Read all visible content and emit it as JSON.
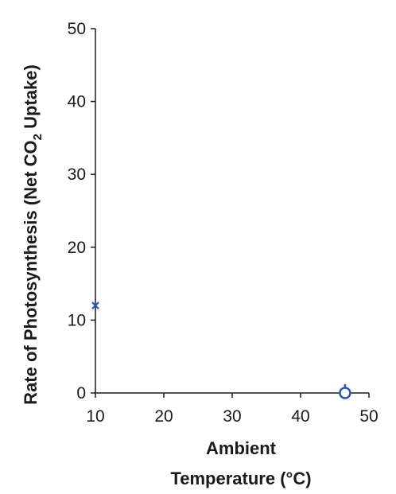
{
  "chart_data": {
    "type": "scatter",
    "title": "",
    "xlabel": [
      "Ambient",
      "Temperature (°C)"
    ],
    "ylabel": {
      "before": "Rate of Photosynthesis (Net CO",
      "subscript": "2",
      "after": " Uptake)"
    },
    "xlim": [
      10,
      50
    ],
    "ylim": [
      0,
      50
    ],
    "xticks": [
      "10",
      "20",
      "30",
      "40",
      "50"
    ],
    "yticks": [
      "0",
      "10",
      "20",
      "30",
      "40",
      "50"
    ],
    "series": [
      {
        "points": [
          {
            "x": 10,
            "y": 12,
            "marker": "cross",
            "error": 0
          },
          {
            "x": 46.5,
            "y": 0,
            "marker": "open-circle",
            "error": 1.2
          }
        ]
      }
    ],
    "marker_color": "#2b55b8",
    "axis_color": "#1a1a1a",
    "grid": false
  }
}
